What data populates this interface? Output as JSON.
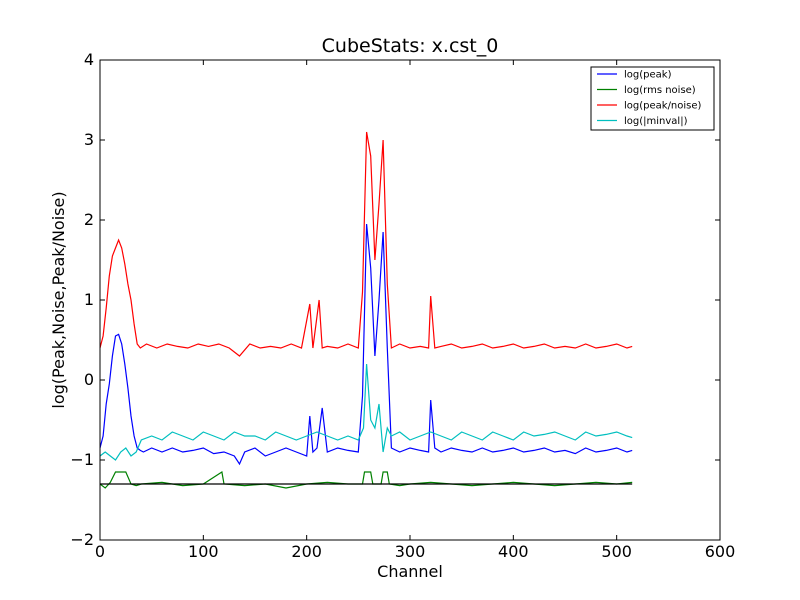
{
  "chart_data": {
    "type": "line",
    "title": "CubeStats: x.cst_0",
    "xlabel": "Channel",
    "ylabel": "log(Peak,Noise,Peak/Noise)",
    "xlim": [
      0,
      600
    ],
    "ylim": [
      -2,
      4
    ],
    "x_ticks": [
      "0",
      "100",
      "200",
      "300",
      "400",
      "500",
      "600"
    ],
    "y_ticks": [
      "−2",
      "−1",
      "0",
      "1",
      "2",
      "3",
      "4"
    ],
    "grid": false,
    "legend_position": "top-right",
    "threshold_line": {
      "y": -1.3,
      "x_range": [
        0,
        515
      ],
      "color": "#000000"
    },
    "series": [
      {
        "name": "log(peak)",
        "color": "#0000ff",
        "x": [
          0,
          3,
          6,
          9,
          12,
          15,
          18,
          21,
          24,
          27,
          30,
          33,
          36,
          39,
          42,
          50,
          60,
          70,
          80,
          90,
          100,
          110,
          120,
          130,
          135,
          140,
          150,
          160,
          170,
          180,
          190,
          200,
          203,
          206,
          210,
          215,
          220,
          230,
          240,
          250,
          254,
          258,
          262,
          266,
          270,
          274,
          278,
          282,
          290,
          300,
          310,
          318,
          320,
          324,
          330,
          340,
          350,
          360,
          370,
          380,
          390,
          400,
          410,
          420,
          430,
          440,
          450,
          460,
          470,
          480,
          490,
          500,
          510,
          515
        ],
        "y": [
          -0.85,
          -0.7,
          -0.3,
          -0.05,
          0.3,
          0.55,
          0.57,
          0.45,
          0.2,
          -0.1,
          -0.45,
          -0.7,
          -0.85,
          -0.88,
          -0.9,
          -0.85,
          -0.9,
          -0.85,
          -0.9,
          -0.88,
          -0.85,
          -0.92,
          -0.9,
          -0.95,
          -1.05,
          -0.9,
          -0.85,
          -0.95,
          -0.9,
          -0.85,
          -0.9,
          -0.95,
          -0.45,
          -0.9,
          -0.85,
          -0.35,
          -0.9,
          -0.85,
          -0.88,
          -0.9,
          -0.2,
          1.95,
          1.4,
          0.3,
          1.0,
          1.85,
          0.4,
          -0.85,
          -0.9,
          -0.85,
          -0.88,
          -0.9,
          -0.25,
          -0.85,
          -0.9,
          -0.85,
          -0.88,
          -0.9,
          -0.85,
          -0.9,
          -0.88,
          -0.85,
          -0.9,
          -0.88,
          -0.85,
          -0.9,
          -0.88,
          -0.92,
          -0.85,
          -0.9,
          -0.88,
          -0.85,
          -0.9,
          -0.88
        ]
      },
      {
        "name": "log(rms noise)",
        "color": "#008000",
        "x": [
          0,
          5,
          10,
          15,
          20,
          25,
          30,
          35,
          40,
          60,
          80,
          100,
          118,
          120,
          140,
          160,
          180,
          200,
          220,
          240,
          254,
          256,
          262,
          264,
          272,
          274,
          278,
          280,
          290,
          300,
          320,
          340,
          360,
          380,
          400,
          420,
          440,
          460,
          480,
          500,
          515
        ],
        "y": [
          -1.3,
          -1.35,
          -1.28,
          -1.15,
          -1.15,
          -1.15,
          -1.3,
          -1.32,
          -1.3,
          -1.28,
          -1.32,
          -1.3,
          -1.15,
          -1.3,
          -1.32,
          -1.3,
          -1.35,
          -1.3,
          -1.28,
          -1.3,
          -1.3,
          -1.15,
          -1.15,
          -1.3,
          -1.3,
          -1.15,
          -1.15,
          -1.3,
          -1.32,
          -1.3,
          -1.28,
          -1.3,
          -1.32,
          -1.3,
          -1.28,
          -1.3,
          -1.32,
          -1.3,
          -1.28,
          -1.3,
          -1.28
        ]
      },
      {
        "name": "log(peak/noise)",
        "color": "#ff0000",
        "x": [
          0,
          3,
          6,
          9,
          12,
          15,
          18,
          21,
          24,
          27,
          30,
          33,
          36,
          39,
          45,
          55,
          65,
          75,
          85,
          95,
          105,
          115,
          125,
          135,
          145,
          155,
          165,
          175,
          185,
          195,
          203,
          206,
          212,
          215,
          220,
          230,
          240,
          250,
          254,
          258,
          262,
          266,
          270,
          274,
          278,
          282,
          290,
          300,
          310,
          318,
          320,
          324,
          330,
          340,
          350,
          360,
          370,
          380,
          390,
          400,
          410,
          420,
          430,
          440,
          450,
          460,
          470,
          480,
          490,
          500,
          510,
          515
        ],
        "y": [
          0.4,
          0.55,
          0.9,
          1.3,
          1.55,
          1.65,
          1.75,
          1.65,
          1.45,
          1.2,
          1.0,
          0.7,
          0.45,
          0.4,
          0.45,
          0.4,
          0.45,
          0.42,
          0.4,
          0.45,
          0.42,
          0.45,
          0.4,
          0.3,
          0.45,
          0.4,
          0.42,
          0.4,
          0.45,
          0.4,
          0.95,
          0.4,
          1.0,
          0.4,
          0.42,
          0.4,
          0.45,
          0.4,
          1.1,
          3.1,
          2.8,
          1.5,
          2.2,
          3.0,
          1.2,
          0.4,
          0.45,
          0.4,
          0.42,
          0.4,
          1.05,
          0.4,
          0.42,
          0.45,
          0.4,
          0.42,
          0.45,
          0.4,
          0.42,
          0.45,
          0.4,
          0.42,
          0.45,
          0.4,
          0.42,
          0.4,
          0.45,
          0.4,
          0.42,
          0.45,
          0.4,
          0.42
        ]
      },
      {
        "name": "log(|minval|)",
        "color": "#00bfbf",
        "x": [
          0,
          5,
          10,
          15,
          20,
          25,
          30,
          35,
          40,
          50,
          60,
          70,
          80,
          90,
          100,
          110,
          120,
          130,
          140,
          150,
          160,
          170,
          180,
          190,
          200,
          210,
          220,
          230,
          240,
          250,
          255,
          258,
          262,
          266,
          270,
          274,
          278,
          282,
          290,
          300,
          310,
          320,
          330,
          340,
          350,
          360,
          370,
          380,
          390,
          400,
          410,
          420,
          430,
          440,
          450,
          460,
          470,
          480,
          490,
          500,
          510,
          515
        ],
        "y": [
          -0.95,
          -0.9,
          -0.95,
          -1.0,
          -0.9,
          -0.85,
          -0.95,
          -0.9,
          -0.75,
          -0.7,
          -0.75,
          -0.65,
          -0.7,
          -0.75,
          -0.65,
          -0.7,
          -0.75,
          -0.65,
          -0.7,
          -0.7,
          -0.75,
          -0.65,
          -0.7,
          -0.75,
          -0.7,
          -0.65,
          -0.7,
          -0.75,
          -0.7,
          -0.75,
          -0.6,
          0.2,
          -0.5,
          -0.6,
          -0.3,
          -0.9,
          -0.6,
          -0.7,
          -0.65,
          -0.75,
          -0.7,
          -0.65,
          -0.7,
          -0.75,
          -0.65,
          -0.7,
          -0.75,
          -0.65,
          -0.7,
          -0.75,
          -0.65,
          -0.7,
          -0.68,
          -0.65,
          -0.7,
          -0.75,
          -0.65,
          -0.7,
          -0.68,
          -0.65,
          -0.7,
          -0.72
        ]
      }
    ]
  }
}
